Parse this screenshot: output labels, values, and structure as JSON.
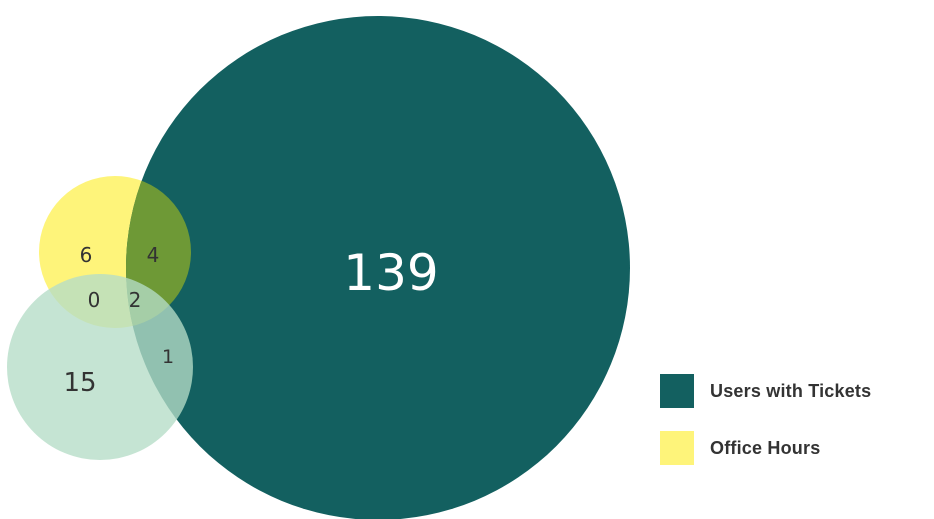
{
  "diagram": {
    "type": "venn",
    "sets": [
      {
        "id": "tickets",
        "color": "#136060"
      },
      {
        "id": "office_hours",
        "color": "#fef47a"
      },
      {
        "id": "third",
        "color": "#b5dcc6"
      }
    ],
    "regions": {
      "tickets_only": "139",
      "office_hours_only": "6",
      "tickets_office_hours": "4",
      "office_hours_third": "0",
      "all_three": "2",
      "third_only": "15",
      "tickets_third": "1"
    }
  },
  "legend": {
    "items": [
      {
        "label": "Users with Tickets",
        "color": "#136060"
      },
      {
        "label": "Office Hours",
        "color": "#fef47a"
      }
    ]
  }
}
